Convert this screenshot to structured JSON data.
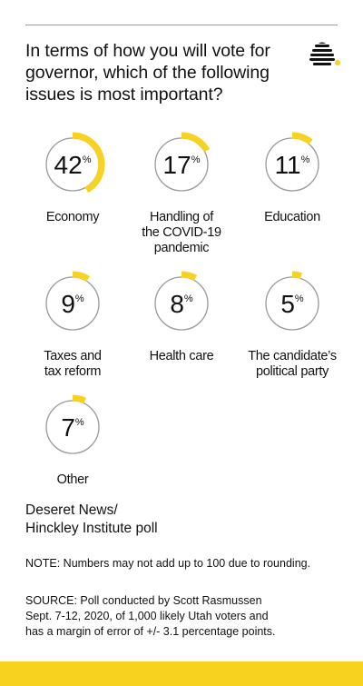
{
  "title": "In terms of how you will vote for governor, which of the following issues is most important?",
  "colors": {
    "accent": "#f7d21e",
    "ring": "#9a9a9a",
    "text": "#111111"
  },
  "logo_icon": "beehive-icon",
  "chart_data": {
    "type": "donut-grid",
    "unit": "%",
    "categories": [
      "Economy",
      "Handling of the COVID-19 pandemic",
      "Education",
      "Taxes and tax reform",
      "Health care",
      "The candidate’s political party",
      "Other"
    ],
    "values": [
      42,
      17,
      11,
      9,
      8,
      5,
      7
    ],
    "items": [
      {
        "value": 42,
        "label_lines": [
          "Economy"
        ]
      },
      {
        "value": 17,
        "label_lines": [
          "Handling of",
          "the COVID-19",
          "pandemic"
        ]
      },
      {
        "value": 11,
        "label_lines": [
          "Education"
        ]
      },
      {
        "value": 9,
        "label_lines": [
          "Taxes and",
          "tax reform"
        ]
      },
      {
        "value": 8,
        "label_lines": [
          "Health care"
        ]
      },
      {
        "value": 5,
        "label_lines": [
          "The candidate’s",
          "political party"
        ]
      },
      {
        "value": 7,
        "label_lines": [
          "Other"
        ]
      }
    ]
  },
  "source_name": {
    "line1": "Deseret News/",
    "line2": "Hinckley Institute poll"
  },
  "note": "NOTE: Numbers may not add up to 100 due to rounding.",
  "source": {
    "line1": "SOURCE: Poll conducted by Scott Rasmussen",
    "line2": "Sept. 7-12, 2020, of 1,000 likely Utah voters and",
    "line3": "has a margin of error of +/- 3.1 percentage points."
  }
}
